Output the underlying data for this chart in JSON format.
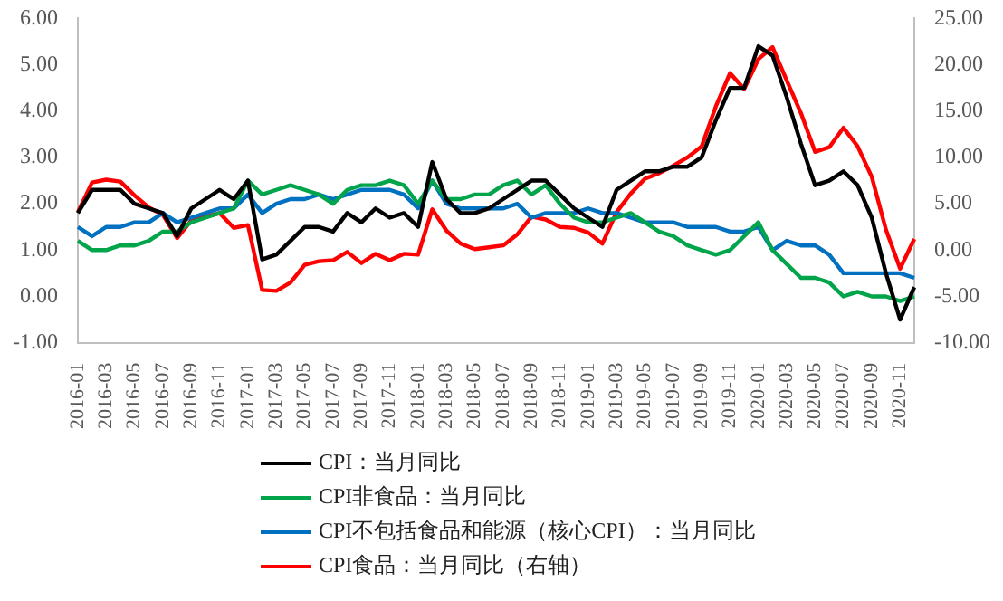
{
  "chart_data": {
    "type": "line",
    "categories": [
      "2016-01",
      null,
      "2016-03",
      null,
      "2016-05",
      null,
      "2016-07",
      null,
      "2016-09",
      null,
      "2016-11",
      null,
      "2017-01",
      null,
      "2017-03",
      null,
      "2017-05",
      null,
      "2017-07",
      null,
      "2017-09",
      null,
      "2017-11",
      null,
      "2018-01",
      null,
      "2018-03",
      null,
      "2018-05",
      null,
      "2018-07",
      null,
      "2018-09",
      null,
      "2018-11",
      null,
      "2019-01",
      null,
      "2019-03",
      null,
      "2019-05",
      null,
      "2019-07",
      null,
      "2019-09",
      null,
      "2019-11",
      null,
      "2020-01",
      null,
      "2020-03",
      null,
      "2020-05",
      null,
      "2020-07",
      null,
      "2020-09",
      null,
      "2020-11",
      null
    ],
    "series": [
      {
        "name": "CPI：当月同比",
        "color": "#000000",
        "values": [
          1.8,
          2.3,
          2.3,
          2.3,
          2.0,
          1.9,
          1.8,
          1.3,
          1.9,
          2.1,
          2.3,
          2.1,
          2.5,
          0.8,
          0.9,
          1.2,
          1.5,
          1.5,
          1.4,
          1.8,
          1.6,
          1.9,
          1.7,
          1.8,
          1.5,
          2.9,
          2.1,
          1.8,
          1.8,
          1.9,
          2.1,
          2.3,
          2.5,
          2.5,
          2.2,
          1.9,
          1.7,
          1.5,
          2.3,
          2.5,
          2.7,
          2.7,
          2.8,
          2.8,
          3.0,
          3.8,
          4.5,
          4.5,
          5.4,
          5.2,
          4.3,
          3.3,
          2.4,
          2.5,
          2.7,
          2.4,
          1.7,
          0.5,
          -0.5,
          0.2
        ]
      },
      {
        "name": "CPI非食品：当月同比",
        "color": "#00a44a",
        "values": [
          1.2,
          1.0,
          1.0,
          1.1,
          1.1,
          1.2,
          1.4,
          1.4,
          1.6,
          1.7,
          1.8,
          1.9,
          2.5,
          2.2,
          2.3,
          2.4,
          2.3,
          2.2,
          2.0,
          2.3,
          2.4,
          2.4,
          2.5,
          2.4,
          2.0,
          2.5,
          2.1,
          2.1,
          2.2,
          2.2,
          2.4,
          2.5,
          2.2,
          2.4,
          2.0,
          1.7,
          1.6,
          1.6,
          1.7,
          1.8,
          1.6,
          1.4,
          1.3,
          1.1,
          1.0,
          0.9,
          1.0,
          1.3,
          1.6,
          1.0,
          0.7,
          0.4,
          0.4,
          0.3,
          0.0,
          0.1,
          0.0,
          0.0,
          -0.1,
          0.0
        ]
      },
      {
        "name": "CPI不包括食品和能源（核心CPI）：当月同比",
        "color": "#0070c0",
        "values": [
          1.5,
          1.3,
          1.5,
          1.5,
          1.6,
          1.6,
          1.8,
          1.6,
          1.7,
          1.8,
          1.9,
          1.9,
          2.2,
          1.8,
          2.0,
          2.1,
          2.1,
          2.2,
          2.1,
          2.2,
          2.3,
          2.3,
          2.3,
          2.2,
          1.9,
          2.5,
          2.0,
          1.9,
          1.9,
          1.9,
          1.9,
          2.0,
          1.7,
          1.8,
          1.8,
          1.8,
          1.9,
          1.8,
          1.8,
          1.7,
          1.6,
          1.6,
          1.6,
          1.5,
          1.5,
          1.5,
          1.4,
          1.4,
          1.5,
          1.0,
          1.2,
          1.1,
          1.1,
          0.9,
          0.5,
          0.5,
          0.5,
          0.5,
          0.5,
          0.4
        ]
      },
      {
        "name": "CPI食品：当月同比（右轴）",
        "color": "#ff0000",
        "axis": "y2",
        "values": [
          4.1,
          7.3,
          7.6,
          7.4,
          5.9,
          4.6,
          3.8,
          1.3,
          3.2,
          3.6,
          4.0,
          2.4,
          2.7,
          -4.3,
          -4.4,
          -3.5,
          -1.6,
          -1.2,
          -1.1,
          -0.2,
          -1.4,
          -0.4,
          -1.1,
          -0.4,
          -0.5,
          4.4,
          2.1,
          0.7,
          0.1,
          0.3,
          0.5,
          1.7,
          3.6,
          3.3,
          2.5,
          2.4,
          1.9,
          0.7,
          4.1,
          6.1,
          7.7,
          8.3,
          9.1,
          10.0,
          11.2,
          15.5,
          19.1,
          17.4,
          20.6,
          21.9,
          18.3,
          14.8,
          10.6,
          11.1,
          13.2,
          11.2,
          7.9,
          2.2,
          -2.0,
          1.2
        ]
      }
    ],
    "ylim": [
      -1,
      6
    ],
    "yticks": [
      {
        "value": -1,
        "label": "-1.00"
      },
      {
        "value": 0,
        "label": "0.00"
      },
      {
        "value": 1,
        "label": "1.00"
      },
      {
        "value": 2,
        "label": "2.00"
      },
      {
        "value": 3,
        "label": "3.00"
      },
      {
        "value": 4,
        "label": "4.00"
      },
      {
        "value": 5,
        "label": "5.00"
      },
      {
        "value": 6,
        "label": "6.00"
      }
    ],
    "y2lim": [
      -10,
      25
    ],
    "y2ticks": [
      {
        "value": -10,
        "label": "-10.00"
      },
      {
        "value": -5,
        "label": "-5.00"
      },
      {
        "value": 0,
        "label": "0.00"
      },
      {
        "value": 5,
        "label": "5.00"
      },
      {
        "value": 10,
        "label": "10.00"
      },
      {
        "value": 15,
        "label": "15.00"
      },
      {
        "value": 20,
        "label": "20.00"
      },
      {
        "value": 25,
        "label": "25.00"
      }
    ],
    "grid": false,
    "legend": "bottom",
    "marker": "none",
    "line_style": "solid"
  }
}
